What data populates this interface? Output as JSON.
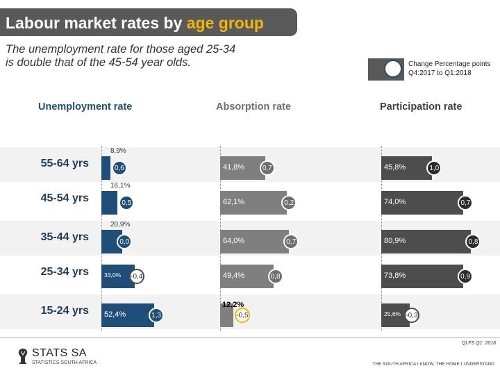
{
  "header": {
    "title_main": "Labour market rates by ",
    "title_highlight": "age group",
    "subtitle_line1": "The unemployment rate for those aged 25-34",
    "subtitle_line2": "is double that of the 45-54 year olds."
  },
  "legend": {
    "line1": "Change Percentage points",
    "line2": "Q4:2017 to Q1:2018"
  },
  "colors": {
    "title_bg": "#595959",
    "title_highlight": "#f2b705",
    "unemployment": "#1f4e79",
    "absorption": "#7f7f7f",
    "participation": "#4d4d4d",
    "band_alt": "#f2f2f2",
    "neg_ring": "#f2b705"
  },
  "chart_data": {
    "type": "bar",
    "categories": [
      "55-64 yrs",
      "45-54 yrs",
      "35-44 yrs",
      "25-34 yrs",
      "15-24 yrs"
    ],
    "series": [
      {
        "name": "Unemployment rate",
        "values": [
          8.9,
          16.1,
          20.9,
          33.0,
          52.4
        ],
        "labels": [
          "8,9%",
          "16,1%",
          "20,9%",
          "33,0%",
          "52,4%"
        ],
        "changes": [
          0.6,
          0.5,
          0.0,
          -0.4,
          1.3
        ],
        "change_labels": [
          "0,6",
          "0,5",
          "0,0",
          "-0,4",
          "1,3"
        ]
      },
      {
        "name": "Absorption rate",
        "values": [
          41.8,
          62.1,
          64.0,
          49.4,
          12.2
        ],
        "labels": [
          "41,8%",
          "62,1%",
          "64,0%",
          "49,4%",
          "12,2%"
        ],
        "changes": [
          0.7,
          0.2,
          0.7,
          0.8,
          -0.5
        ],
        "change_labels": [
          "0,7",
          "0,2",
          "0,7",
          "0,8",
          "-0,5"
        ]
      },
      {
        "name": "Participation rate",
        "values": [
          45.8,
          74.0,
          80.9,
          73.8,
          25.6
        ],
        "labels": [
          "45,8%",
          "74,0%",
          "80,9%",
          "73,8%",
          "25,6%"
        ],
        "changes": [
          1.0,
          0.7,
          0.8,
          0.9,
          -0.3
        ],
        "change_labels": [
          "1,0",
          "0,7",
          "0,8",
          "0,9",
          "-0,3"
        ]
      }
    ]
  },
  "footer": {
    "source": "QLFS Q1: 2018",
    "logo_name": "STATS SA",
    "logo_sub": "STATISTICS SOUTH AFRICA",
    "slogan": "THE SOUTH AFRICA I KNOW, THE HOME I UNDERSTAND"
  }
}
